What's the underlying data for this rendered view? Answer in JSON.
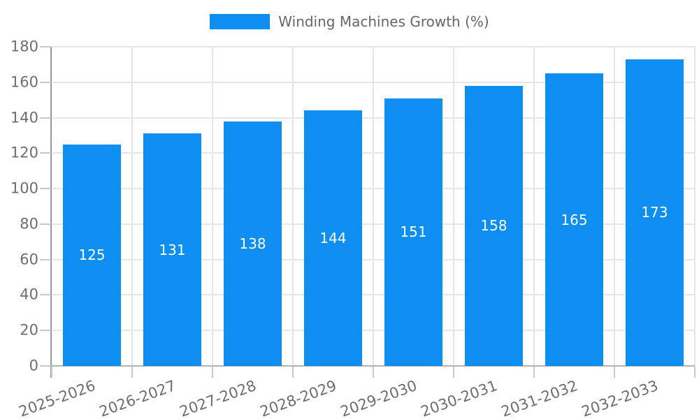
{
  "legend": {
    "label": "Winding Machines Growth (%)",
    "swatch_color": "#0d8ff2"
  },
  "chart_data": {
    "type": "bar",
    "title": "",
    "categories": [
      "2025-2026",
      "2026-2027",
      "2027-2028",
      "2028-2029",
      "2029-2030",
      "2030-2031",
      "2031-2032",
      "2032-2033"
    ],
    "series": [
      {
        "name": "Winding Machines Growth (%)",
        "values": [
          125,
          131,
          138,
          144,
          151,
          158,
          165,
          173
        ]
      }
    ],
    "value_labels": [
      "125",
      "131",
      "138",
      "144",
      "151",
      "158",
      "165",
      "173"
    ],
    "xlabel": "",
    "ylabel": "",
    "ylim": [
      0,
      180
    ],
    "ytick_step": 20,
    "ytick_labels": [
      "0",
      "20",
      "40",
      "60",
      "80",
      "100",
      "120",
      "140",
      "160",
      "180"
    ],
    "grid": "on",
    "legend_position": "top-center",
    "colors": {
      "bar": "#0d8ff2",
      "gridline": "#e6e6e6",
      "y_axis_line": "#999999",
      "x_axis_line": "#b3b3b3",
      "tick": "#c9c9c9",
      "axis_text": "#6e6e6e",
      "legend_text": "#666666",
      "value_label": "#ffffff"
    }
  }
}
